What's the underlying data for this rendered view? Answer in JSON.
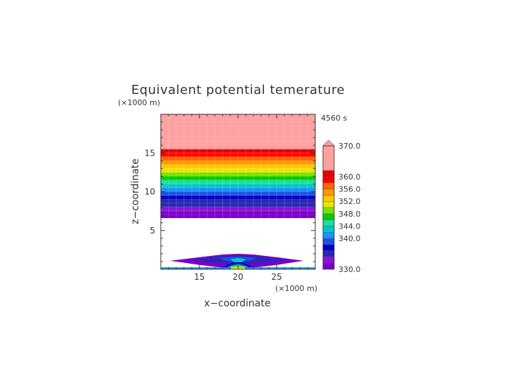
{
  "chart_data": {
    "type": "heatmap",
    "title": "Equivalent potential temerature",
    "time_label": "4560 s",
    "xlabel": "x−coordinate",
    "ylabel": "z−coordinate",
    "x_unit": "(×1000 m)",
    "y_unit": "(×1000 m)",
    "xlim": [
      10,
      30
    ],
    "ylim": [
      0,
      20
    ],
    "x_ticks": [
      "15",
      "20",
      "25"
    ],
    "y_ticks": [
      "5",
      "10",
      "15"
    ],
    "colorbar_range": [
      330,
      370
    ],
    "colorbar_labels": [
      "370.0",
      "360.0",
      "356.0",
      "352.0",
      "348.0",
      "344.0",
      "340.0",
      "330.0"
    ],
    "colors": [
      "#7a00c8",
      "#8c10d8",
      "#2828b4",
      "#0000c8",
      "#2050e6",
      "#1e90ff",
      "#00c8c8",
      "#20dca0",
      "#00cc00",
      "#80e000",
      "#e6e600",
      "#ffc800",
      "#ff9600",
      "#ff6400",
      "#ff0000",
      "#e80000",
      "#ffa0a0"
    ],
    "bands": [
      {
        "z0": 16.5,
        "z1": 19.5,
        "ci": 16
      },
      {
        "z0": 15.5,
        "z1": 16.5,
        "ci": 16
      },
      {
        "z0": 15.0,
        "z1": 15.5,
        "ci": 15
      },
      {
        "z0": 14.5,
        "z1": 15.0,
        "ci": 14
      },
      {
        "z0": 14.0,
        "z1": 14.5,
        "ci": 13
      },
      {
        "z0": 13.5,
        "z1": 14.0,
        "ci": 12
      },
      {
        "z0": 13.0,
        "z1": 13.5,
        "ci": 11
      },
      {
        "z0": 12.5,
        "z1": 13.0,
        "ci": 10
      },
      {
        "z0": 12.0,
        "z1": 12.5,
        "ci": 9
      },
      {
        "z0": 11.5,
        "z1": 12.0,
        "ci": 8
      },
      {
        "z0": 11.0,
        "z1": 11.5,
        "ci": 7
      },
      {
        "z0": 10.5,
        "z1": 11.0,
        "ci": 6
      },
      {
        "z0": 10.0,
        "z1": 10.5,
        "ci": 5
      },
      {
        "z0": 9.5,
        "z1": 10.0,
        "ci": 4
      },
      {
        "z0": 9.0,
        "z1": 9.5,
        "ci": 3
      },
      {
        "z0": 8.0,
        "z1": 9.0,
        "ci": 2
      },
      {
        "z0": 7.5,
        "z1": 8.0,
        "ci": 1
      },
      {
        "z0": 6.6,
        "z1": 7.5,
        "ci": 0
      }
    ]
  }
}
